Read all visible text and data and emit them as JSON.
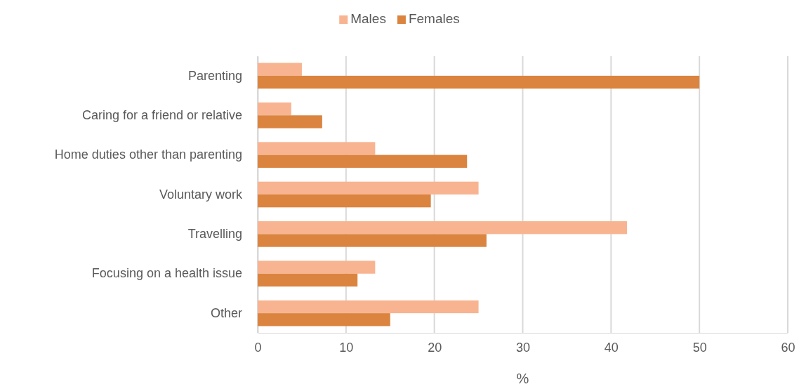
{
  "chart_data": {
    "type": "bar",
    "orientation": "horizontal",
    "xlabel": "%",
    "categories": [
      "Parenting",
      "Caring for a friend or relative",
      "Home duties other than parenting",
      "Voluntary work",
      "Travelling",
      "Focusing on a health issue",
      "Other"
    ],
    "series": [
      {
        "name": "Males",
        "color": "#f8b490",
        "values": [
          5.0,
          3.8,
          13.3,
          25.0,
          41.8,
          13.3,
          25.0
        ]
      },
      {
        "name": "Females",
        "color": "#db843f",
        "values": [
          50.0,
          7.3,
          23.7,
          19.6,
          25.9,
          11.3,
          15.0
        ]
      }
    ],
    "xlim": [
      0,
      60
    ],
    "xticks": [
      0,
      10,
      20,
      30,
      40,
      50,
      60
    ],
    "grid": "x",
    "legend": "top"
  }
}
